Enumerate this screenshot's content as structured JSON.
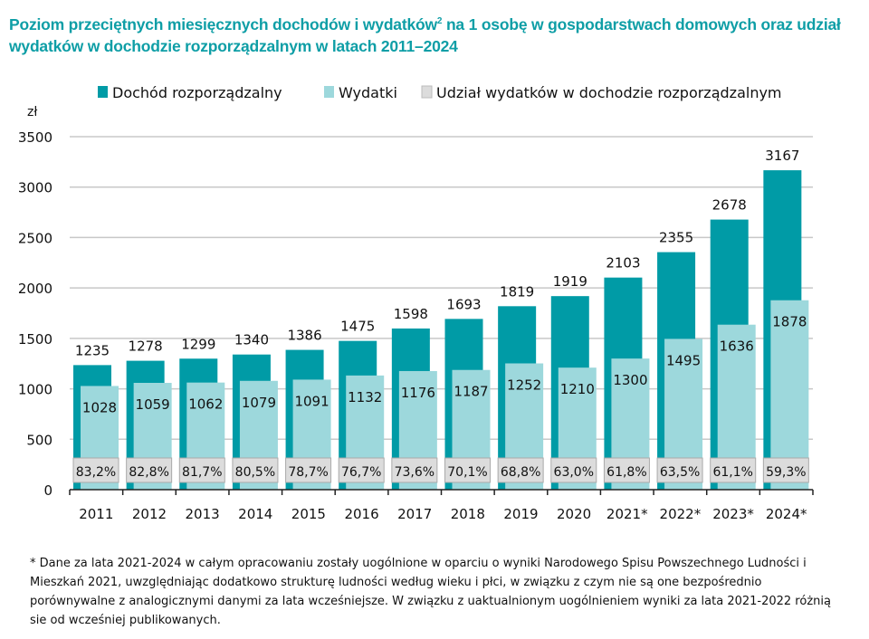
{
  "title_part1": "Poziom przeciętnych miesięcznych dochodów i wydatków",
  "title_sup": "2",
  "title_part2": " na 1 osobę w gospodarstwach domowych oraz udział wydatków w dochodzie rozporządzalnym w latach 2011–2024",
  "footnote": "* Dane za lata 2021-2024 w całym opracowaniu zostały uogólnione w oparciu o wyniki Narodowego Spisu Powszechnego Ludności i Mieszkań 2021, uwzględniając dodatkowo strukturę ludności według wieku i płci, w związku z czym nie są one bezpośrednio porównywalne z analogicznymi danymi za lata wcześniejsze. W związku z uaktualnionym uogólnieniem wyniki za lata 2021-2022 różnią sie od wcześniej publikowanych.",
  "chart_data": {
    "type": "bar",
    "ylabel": "zł",
    "ylim": [
      0,
      3500
    ],
    "yticks": [
      0,
      500,
      1000,
      1500,
      2000,
      2500,
      3000,
      3500
    ],
    "grid": true,
    "legend_position": "top",
    "categories": [
      "2011",
      "2012",
      "2013",
      "2014",
      "2015",
      "2016",
      "2017",
      "2018",
      "2019",
      "2020",
      "2021*",
      "2022*",
      "2023*",
      "2024*"
    ],
    "series": [
      {
        "name": "Dochód rozporządzalny",
        "color": "#009ba6",
        "values": [
          1235,
          1278,
          1299,
          1340,
          1386,
          1475,
          1598,
          1693,
          1819,
          1919,
          2103,
          2355,
          2678,
          3167
        ]
      },
      {
        "name": "Wydatki",
        "color": "#9dd8dc",
        "values": [
          1028,
          1059,
          1062,
          1079,
          1091,
          1132,
          1176,
          1187,
          1252,
          1210,
          1300,
          1495,
          1636,
          1878
        ]
      },
      {
        "name": "Udział wydatków w dochodzie rozporządzalnym",
        "color": "#dcdcdc",
        "values": [
          "83,2%",
          "82,8%",
          "81,7%",
          "80,5%",
          "78,7%",
          "76,7%",
          "73,6%",
          "70,1%",
          "68,8%",
          "63,0%",
          "61,8%",
          "63,5%",
          "61,1%",
          "59,3%"
        ]
      }
    ]
  }
}
